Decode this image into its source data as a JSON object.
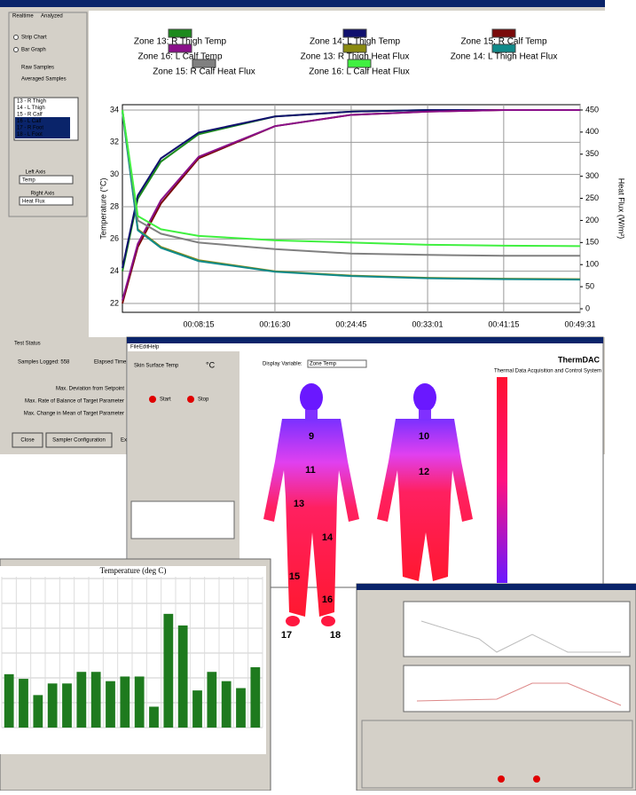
{
  "main_window": {
    "tabs": [
      "Realtime",
      "Analyzed"
    ],
    "plot_modes": [
      "Strip Chart",
      "Bar Graph"
    ],
    "sample_modes": [
      "Raw Samples",
      "Averaged Samples"
    ],
    "zone_list": [
      "13 - R Thigh",
      "14 - L Thigh",
      "15 - R Calf",
      "16 - L Calf",
      "17 - R Foot",
      "18 - L Foot"
    ],
    "left_axis": {
      "label": "Left Axis",
      "value": "Temp"
    },
    "right_axis": {
      "label": "Right Axis",
      "value": "Heat Flux"
    },
    "status_tab": "Test Status",
    "samples_logged": "Samples Logged: 558",
    "elapsed": "Elapsed Time",
    "status_lines": [
      "Max. Deviation from Setpoint",
      "Max. Rate of Balance of Target Parameter",
      "Max. Change in Mean of Target Parameter"
    ],
    "buttons": [
      "Close",
      "Sampler Configuration",
      "Ex"
    ]
  },
  "body_window": {
    "menu": [
      "File",
      "Edit",
      "Help"
    ],
    "brand": "ThermDAC",
    "subtitle": "Thermal Data Acquisition and Control System",
    "display_variable_label": "Display Variable:",
    "display_variable": "Zone Temp",
    "sensor_label": "Skin Surface Temp",
    "unit": "°C",
    "zone_numbers": [
      "9",
      "10",
      "11",
      "12",
      "13",
      "14",
      "15",
      "16",
      "17",
      "18"
    ],
    "buttons": [
      "Start",
      "Stop"
    ]
  },
  "chart_data": [
    {
      "type": "line",
      "ylabel": "Temperature (°C)",
      "y2label": "Heat Flux (W/m²)",
      "x": [
        0,
        100,
        250,
        495,
        990,
        1485,
        1981,
        2475,
        2971
      ],
      "xlim": [
        0,
        2971
      ],
      "xticks": [
        {
          "value": 495,
          "label": "00:08:15"
        },
        {
          "value": 990,
          "label": "00:16:30"
        },
        {
          "value": 1485,
          "label": "00:24:45"
        },
        {
          "value": 1981,
          "label": "00:33:01"
        },
        {
          "value": 2475,
          "label": "00:41:15"
        },
        {
          "value": 2971,
          "label": "00:49:31"
        }
      ],
      "ylim": [
        21.45,
        34.33
      ],
      "yticks": [
        22,
        24,
        26,
        28,
        30,
        32,
        34
      ],
      "y2lim": [
        -8,
        462
      ],
      "y2ticks": [
        0,
        50,
        100,
        150,
        200,
        250,
        300,
        350,
        400,
        450
      ],
      "grid": true,
      "series": [
        {
          "name": "Zone 13: R Thigh Temp",
          "color": "#1c8a1c",
          "values": [
            24,
            28.5,
            30.8,
            32.5,
            33.6,
            33.9,
            34.0,
            34.0,
            34.0
          ]
        },
        {
          "name": "Zone 14: L Thigh Temp",
          "color": "#10106e",
          "values": [
            24.2,
            28.7,
            31.0,
            32.6,
            33.6,
            33.9,
            34.0,
            34.0,
            34.0
          ]
        },
        {
          "name": "Zone 15: R Calf Temp",
          "color": "#7a0a0a",
          "values": [
            22,
            25.5,
            28.2,
            31.0,
            33.0,
            33.7,
            33.9,
            34.0,
            34.0
          ]
        },
        {
          "name": "Zone 16: L Calf Temp",
          "color": "#8a108a",
          "values": [
            22.2,
            25.7,
            28.4,
            31.1,
            33.0,
            33.7,
            33.9,
            34.0,
            34.0
          ]
        },
        {
          "name": "Zone 13: R Thigh Heat Flux",
          "color": "#8a8a10",
          "axis": "y2",
          "values": [
            450,
            180,
            140,
            110,
            85,
            75,
            70,
            68,
            67
          ]
        },
        {
          "name": "Zone 14: L Thigh Heat Flux",
          "color": "#108a8a",
          "axis": "y2",
          "values": [
            445,
            178,
            138,
            108,
            84,
            74,
            69,
            67,
            66
          ]
        },
        {
          "name": "Zone 15: R Calf Heat Flux",
          "color": "#808080",
          "axis": "y2",
          "values": [
            450,
            200,
            170,
            150,
            135,
            125,
            122,
            120,
            120
          ]
        },
        {
          "name": "Zone 16: L Calf Heat Flux",
          "color": "#40f040",
          "axis": "y2",
          "values": [
            450,
            210,
            180,
            165,
            155,
            150,
            145,
            143,
            142
          ]
        }
      ]
    },
    {
      "type": "bar",
      "title": "Temperature (deg C)",
      "categories": [
        null,
        null,
        null,
        null,
        null,
        null,
        null,
        null,
        null,
        null,
        null,
        null,
        null,
        null,
        null,
        null,
        null,
        null
      ],
      "values": [
        2.3,
        2.1,
        1.4,
        1.9,
        1.9,
        2.4,
        2.4,
        2.0,
        2.2,
        2.2,
        0.9,
        4.9,
        4.4,
        1.6,
        2.4,
        2.0,
        1.7,
        2.6
      ],
      "color": "#1e7a1e",
      "ylim": [
        0,
        6.5
      ]
    }
  ]
}
